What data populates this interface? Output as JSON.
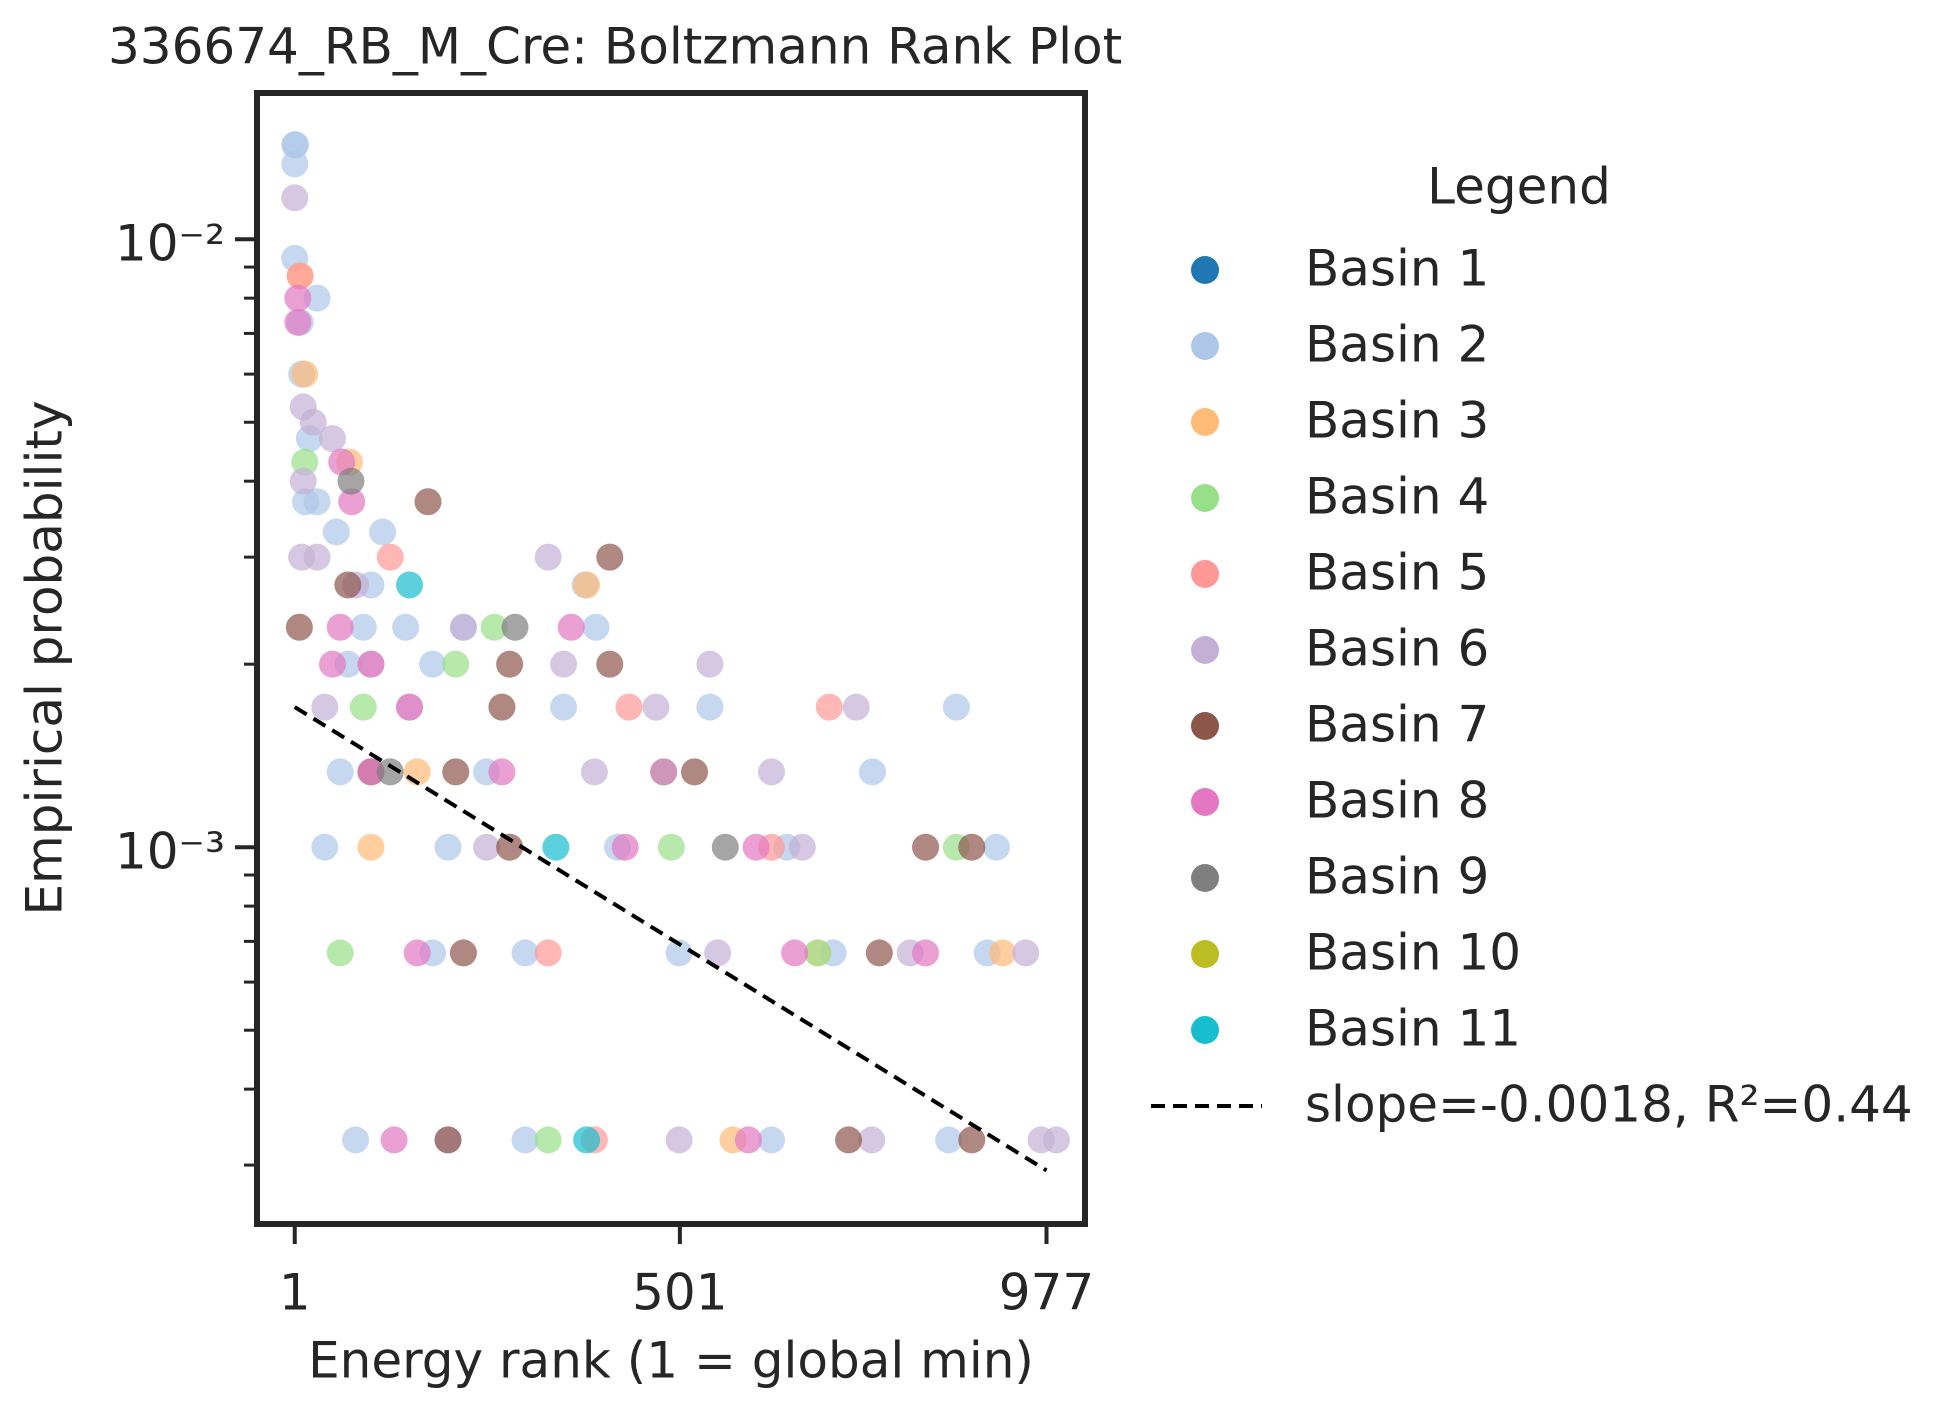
{
  "chart_data": {
    "type": "scatter",
    "title": "336674_RB_M_Cre: Boltzmann Rank Plot",
    "x_label": "Energy rank (1 = global min)",
    "y_label": "Empirical probability",
    "xlim": [
      -48,
      1027
    ],
    "xticks": [
      1,
      501,
      977
    ],
    "ylim": [
      0.00024,
      0.0174
    ],
    "log_y": true,
    "yticks": [
      {
        "value": 0.001,
        "label": "10⁻³"
      },
      {
        "value": 0.01,
        "label": "10⁻²"
      }
    ],
    "yminorticks": [
      0.0003,
      0.0004,
      0.0005,
      0.0006,
      0.0007,
      0.0008,
      0.0009,
      0.002,
      0.003,
      0.004,
      0.005,
      0.006,
      0.007,
      0.008,
      0.009
    ],
    "legend_title": "Legend",
    "legend_position": "outside right",
    "series": [
      {
        "name": "Basin 1",
        "color": "#1f77b4",
        "x": [],
        "values": []
      },
      {
        "name": "Basin 2",
        "color": "#aec7e8",
        "x": [
          1,
          2,
          1,
          1,
          30,
          8,
          10,
          20,
          15,
          30,
          55,
          115,
          100,
          90,
          145,
          220,
          70,
          180,
          350,
          540,
          860,
          60,
          250,
          480,
          751,
          40,
          200,
          420,
          640,
          912,
          180,
          300,
          500,
          700,
          900,
          80,
          300,
          620,
          850,
          378,
          392
        ],
        "values": [
          0.0143,
          0.0143,
          0.0133,
          0.0093,
          0.008,
          0.0073,
          0.006,
          0.0047,
          0.0037,
          0.0037,
          0.0033,
          0.0033,
          0.0027,
          0.0023,
          0.0023,
          0.0023,
          0.002,
          0.002,
          0.0017,
          0.0017,
          0.0017,
          0.00133,
          0.00133,
          0.00133,
          0.00133,
          0.001,
          0.001,
          0.001,
          0.001,
          0.001,
          0.00067,
          0.00067,
          0.00067,
          0.00067,
          0.00067,
          0.00033,
          0.00033,
          0.00033,
          0.00033,
          0.0027,
          0.0023
        ]
      },
      {
        "name": "Basin 3",
        "color": "#ffbb78",
        "x": [
          8,
          14,
          72,
          380,
          160,
          100,
          680,
          920,
          570
        ],
        "values": [
          0.0087,
          0.006,
          0.0043,
          0.0027,
          0.00133,
          0.001,
          0.00067,
          0.00067,
          0.00033
        ]
      },
      {
        "name": "Basin 4",
        "color": "#98df8a",
        "x": [
          14,
          260,
          210,
          90,
          480,
          490,
          860,
          60,
          680,
          330
        ],
        "values": [
          0.0043,
          0.0023,
          0.002,
          0.0017,
          0.00133,
          0.001,
          0.001,
          0.00067,
          0.00067,
          0.00033
        ]
      },
      {
        "name": "Basin 5",
        "color": "#ff9896",
        "x": [
          8,
          125,
          435,
          695,
          330,
          620,
          390
        ],
        "values": [
          0.0087,
          0.003,
          0.0017,
          0.0017,
          0.00067,
          0.001,
          0.00033
        ]
      },
      {
        "name": "Basin 6",
        "color": "#c5b0d5",
        "x": [
          1,
          12,
          25,
          50,
          12,
          10,
          30,
          80,
          220,
          330,
          350,
          540,
          100,
          470,
          730,
          40,
          150,
          390,
          620,
          250,
          660,
          550,
          800,
          950,
          200,
          500,
          750,
          970,
          990
        ],
        "values": [
          0.0117,
          0.0053,
          0.005,
          0.0047,
          0.004,
          0.003,
          0.003,
          0.0027,
          0.0023,
          0.003,
          0.002,
          0.002,
          0.002,
          0.0017,
          0.0017,
          0.0017,
          0.0017,
          0.00133,
          0.00133,
          0.001,
          0.001,
          0.00067,
          0.00067,
          0.00067,
          0.00033,
          0.00033,
          0.00033,
          0.00033,
          0.00033
        ]
      },
      {
        "name": "Basin 7",
        "color": "#8c564b",
        "x": [
          7,
          70,
          174,
          410,
          410,
          280,
          270,
          100,
          210,
          520,
          280,
          820,
          880,
          220,
          760,
          200,
          720,
          880
        ],
        "values": [
          0.0023,
          0.0027,
          0.0037,
          0.003,
          0.002,
          0.002,
          0.0017,
          0.00133,
          0.00133,
          0.00133,
          0.001,
          0.001,
          0.001,
          0.00067,
          0.00067,
          0.00033,
          0.00033,
          0.00033
        ]
      },
      {
        "name": "Basin 8",
        "color": "#e377c2",
        "x": [
          5,
          5,
          75,
          62,
          60,
          50,
          100,
          360,
          150,
          100,
          270,
          480,
          430,
          600,
          160,
          650,
          820,
          130,
          590
        ],
        "values": [
          0.008,
          0.0073,
          0.0037,
          0.0043,
          0.0023,
          0.002,
          0.002,
          0.0023,
          0.0017,
          0.00133,
          0.00133,
          0.00133,
          0.001,
          0.001,
          0.00067,
          0.00067,
          0.00067,
          0.00033,
          0.00033
        ]
      },
      {
        "name": "Basin 9",
        "color": "#7f7f7f",
        "x": [
          74,
          287,
          125,
          560
        ],
        "values": [
          0.004,
          0.0023,
          0.00133,
          0.001
        ]
      },
      {
        "name": "Basin 10",
        "color": "#bcbd22",
        "x": [],
        "values": []
      },
      {
        "name": "Basin 11",
        "color": "#17becf",
        "x": [
          150,
          340,
          380
        ],
        "values": [
          0.0027,
          0.001,
          0.00033
        ]
      }
    ],
    "fit": {
      "label": "slope=-0.0018, R²=0.44",
      "color": "#000000",
      "x": [
        1,
        977
      ],
      "values": [
        0.0017,
        0.000294
      ]
    }
  }
}
